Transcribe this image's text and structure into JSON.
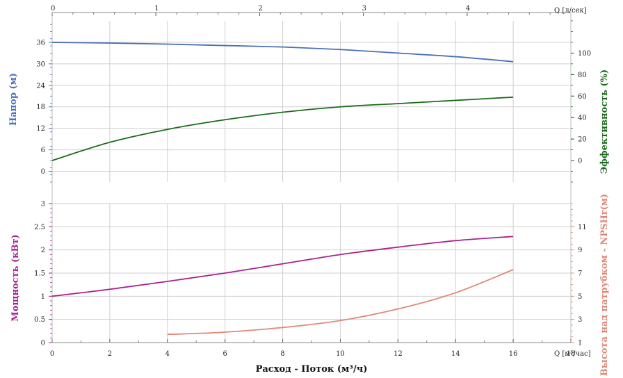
{
  "chart_data": {
    "type": "line",
    "xlabel": "Расход - Поток (м³/ч)",
    "top_axis": {
      "label": "Q [л/сек]",
      "ticks": [
        0,
        1,
        2,
        3,
        4
      ]
    },
    "bottom_axis": {
      "label": "Q [м³/час]",
      "ticks": [
        0,
        2,
        4,
        6,
        8,
        10,
        12,
        14,
        16,
        18
      ],
      "xlim": [
        0,
        18
      ]
    },
    "upper_panel": {
      "left_axis": {
        "label": "Напор (м)",
        "color": "#4a6fbb",
        "ticks": [
          0,
          6,
          12,
          18,
          24,
          30,
          36
        ],
        "ylim": [
          -3,
          42
        ]
      },
      "right_axis": {
        "label": "Эффективность (%)",
        "color": "#1a6b1a",
        "ticks": [
          0,
          20,
          40,
          60,
          80,
          100
        ],
        "ylim": [
          -20,
          130
        ]
      },
      "series": [
        {
          "name": "Напор (м)",
          "axis": "left",
          "color": "#4a6fbb",
          "x": [
            0,
            2,
            4,
            6,
            8,
            10,
            12,
            14,
            16
          ],
          "y": [
            36.0,
            35.8,
            35.5,
            35.1,
            34.7,
            34.0,
            33.0,
            32.0,
            30.6
          ]
        },
        {
          "name": "Эффективность (%)",
          "axis": "right",
          "color": "#1a6b1a",
          "x": [
            0,
            2,
            4,
            6,
            8,
            10,
            12,
            14,
            16
          ],
          "y": [
            0,
            17,
            29,
            38,
            45,
            50,
            53,
            56,
            59
          ]
        }
      ]
    },
    "lower_panel": {
      "left_axis": {
        "label": "Мощность (кВт)",
        "color": "#a8228f",
        "ticks": [
          0,
          0.5,
          1,
          1.5,
          2,
          2.5,
          3
        ],
        "ylim": [
          0,
          3
        ]
      },
      "right_axis": {
        "label": "Высота над патрубком - NPSHr(м)",
        "color": "#e08878",
        "ticks": [
          1,
          3,
          5,
          7,
          9,
          11
        ],
        "ylim": [
          1,
          13
        ]
      },
      "series": [
        {
          "name": "Мощность (кВт)",
          "axis": "left",
          "color": "#a8228f",
          "x": [
            0,
            2,
            4,
            6,
            8,
            10,
            12,
            14,
            16
          ],
          "y": [
            1.0,
            1.15,
            1.32,
            1.5,
            1.7,
            1.9,
            2.06,
            2.2,
            2.29
          ]
        },
        {
          "name": "Высота над патрубком - NPSHr(м)",
          "axis": "right",
          "color": "#e08878",
          "x": [
            4,
            6,
            8,
            10,
            12,
            14,
            16
          ],
          "y": [
            1.7,
            1.9,
            2.3,
            2.9,
            3.9,
            5.3,
            7.3
          ]
        }
      ]
    }
  }
}
